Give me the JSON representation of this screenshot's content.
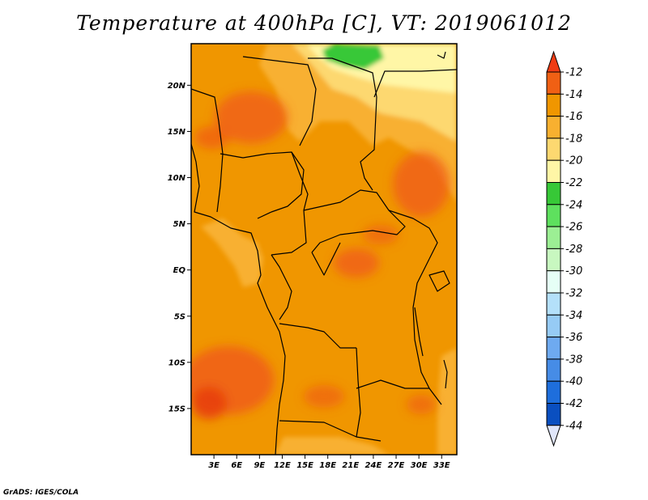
{
  "title": "Temperature at 400hPa [C], VT: 2019061012",
  "credit": "GrADS: IGES/COLA",
  "map": {
    "lon_range": [
      0,
      35
    ],
    "lat_range": [
      -20,
      24.5
    ],
    "lat_ticks": [
      {
        "value": 20,
        "label": "20N"
      },
      {
        "value": 15,
        "label": "15N"
      },
      {
        "value": 10,
        "label": "10N"
      },
      {
        "value": 5,
        "label": "5N"
      },
      {
        "value": 0,
        "label": "EQ"
      },
      {
        "value": -5,
        "label": "5S"
      },
      {
        "value": -10,
        "label": "10S"
      },
      {
        "value": -15,
        "label": "15S"
      }
    ],
    "lon_ticks": [
      {
        "value": 3,
        "label": "3E"
      },
      {
        "value": 6,
        "label": "6E"
      },
      {
        "value": 9,
        "label": "9E"
      },
      {
        "value": 12,
        "label": "12E"
      },
      {
        "value": 15,
        "label": "15E"
      },
      {
        "value": 18,
        "label": "18E"
      },
      {
        "value": 21,
        "label": "21E"
      },
      {
        "value": 24,
        "label": "24E"
      },
      {
        "value": 27,
        "label": "27E"
      },
      {
        "value": 30,
        "label": "30E"
      },
      {
        "value": 33,
        "label": "33E"
      }
    ]
  },
  "colorbar": {
    "levels": [
      {
        "label": "-12",
        "color": "#f06014"
      },
      {
        "label": "-14",
        "color": "#f09600"
      },
      {
        "label": "-16",
        "color": "#f8b030"
      },
      {
        "label": "-18",
        "color": "#fdd870"
      },
      {
        "label": "-20",
        "color": "#fff6a6"
      },
      {
        "label": "-22",
        "color": "#37c837"
      },
      {
        "label": "-24",
        "color": "#5ee05e"
      },
      {
        "label": "-26",
        "color": "#9cef94"
      },
      {
        "label": "-28",
        "color": "#c8f8c0"
      },
      {
        "label": "-30",
        "color": "#e6fff6"
      },
      {
        "label": "-32",
        "color": "#b4e0fa"
      },
      {
        "label": "-34",
        "color": "#96cbf5"
      },
      {
        "label": "-36",
        "color": "#6eaaf0"
      },
      {
        "label": "-38",
        "color": "#468ce6"
      },
      {
        "label": "-40",
        "color": "#1e6edc"
      },
      {
        "label": "-42",
        "color": "#0a4fc0"
      },
      {
        "label": "-44",
        "color": "#05307a"
      }
    ],
    "top_color": "#f03c14",
    "bottom_color": "#e0e6fa"
  }
}
